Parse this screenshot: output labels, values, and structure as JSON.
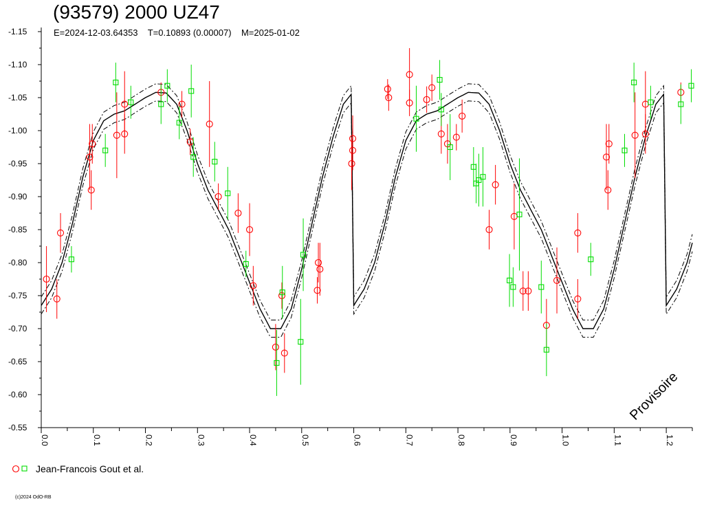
{
  "header": {
    "title": "(93579) 2000 UZ47",
    "subtitle": "E=2024-12-03.64353    T=0.10893 (0.00007)    M=2025-01-02"
  },
  "legend": {
    "label": "Jean-Francois Gout et al."
  },
  "copyright": "(c)2024 OdO-RB",
  "watermark": "Provisoire",
  "colors": {
    "series_red": "#ff0000",
    "series_green": "#00dd00",
    "curve": "#000000"
  },
  "chart_data": {
    "type": "scatter",
    "xlim": [
      0.0,
      1.25
    ],
    "ylim": [
      -1.15,
      -0.55
    ],
    "y_ticks": [
      "-1.15",
      "-1.10",
      "-1.05",
      "-1.00",
      "-0.95",
      "-0.90",
      "-0.85",
      "-0.80",
      "-0.75",
      "-0.70",
      "-0.65",
      "-0.60",
      "-0.55"
    ],
    "x_ticks": [
      "0.0",
      "0.1",
      "0.2",
      "0.3",
      "0.4",
      "0.5",
      "0.6",
      "0.7",
      "0.8",
      "0.9",
      "1.0",
      "1.1",
      "1.2"
    ],
    "grid": false,
    "legend_placement": "bottom-left",
    "series": [
      {
        "marker": "circle",
        "color": "#ff0000",
        "points": [
          [
            0.01,
            -0.775,
            0.05
          ],
          [
            0.03,
            -0.745,
            0.03
          ],
          [
            0.037,
            -0.845,
            0.03
          ],
          [
            0.093,
            -0.96,
            0.05
          ],
          [
            0.096,
            -0.91,
            0.03
          ],
          [
            0.098,
            -0.98,
            0.03
          ],
          [
            0.145,
            -0.993,
            0.065
          ],
          [
            0.16,
            -0.995,
            0.03
          ],
          [
            0.16,
            -1.04,
            0.05
          ],
          [
            0.23,
            -1.058,
            0.015
          ],
          [
            0.27,
            -1.04,
            0.02
          ],
          [
            0.286,
            -0.983,
            0.02
          ],
          [
            0.323,
            -1.01,
            0.065
          ],
          [
            0.34,
            -0.9,
            0.02
          ],
          [
            0.378,
            -0.875,
            0.03
          ],
          [
            0.4,
            -0.85,
            0.04
          ],
          [
            0.407,
            -0.765,
            0.03
          ],
          [
            0.45,
            -0.672,
            0.035
          ],
          [
            0.462,
            -0.75,
            0.02
          ],
          [
            0.467,
            -0.663,
            0.03
          ],
          [
            0.53,
            -0.758,
            0.02
          ],
          [
            0.532,
            -0.8,
            0.03
          ],
          [
            0.535,
            -0.79,
            0.04
          ],
          [
            0.596,
            -0.95,
            0.04
          ],
          [
            0.598,
            -0.988,
            0.035
          ],
          [
            0.598,
            -0.97,
            0.03
          ],
          [
            0.665,
            -1.063,
            0.015
          ],
          [
            0.667,
            -1.05,
            0.02
          ],
          [
            0.707,
            -1.085,
            0.04
          ],
          [
            0.707,
            -1.042,
            0.02
          ],
          [
            0.74,
            -1.047,
            0.02
          ],
          [
            0.75,
            -1.065,
            0.02
          ],
          [
            0.768,
            -0.995,
            0.03
          ],
          [
            0.78,
            -0.98,
            0.03
          ],
          [
            0.797,
            -0.99,
            0.02
          ],
          [
            0.808,
            -1.022,
            0.025
          ],
          [
            0.86,
            -0.85,
            0.03
          ],
          [
            0.872,
            -0.918,
            0.03
          ],
          [
            0.908,
            -0.87,
            0.05
          ],
          [
            0.925,
            -0.757,
            0.03
          ],
          [
            0.935,
            -0.757,
            0.03
          ],
          [
            0.97,
            -0.705,
            0.04
          ],
          [
            0.99,
            -0.773,
            0.05
          ],
          [
            1.03,
            -0.745,
            0.03
          ],
          [
            1.03,
            -0.845,
            0.03
          ],
          [
            1.085,
            -0.96,
            0.05
          ],
          [
            1.088,
            -0.91,
            0.03
          ],
          [
            1.09,
            -0.98,
            0.03
          ],
          [
            1.14,
            -0.993,
            0.065
          ],
          [
            1.16,
            -1.04,
            0.05
          ],
          [
            1.16,
            -0.995,
            0.03
          ],
          [
            1.228,
            -1.058,
            0.015
          ]
        ]
      },
      {
        "marker": "square",
        "color": "#00dd00",
        "points": [
          [
            0.058,
            -0.805,
            0.02
          ],
          [
            0.123,
            -0.97,
            0.025
          ],
          [
            0.143,
            -1.073,
            0.03
          ],
          [
            0.172,
            -1.043,
            0.025
          ],
          [
            0.23,
            -1.04,
            0.03
          ],
          [
            0.242,
            -1.068,
            0.025
          ],
          [
            0.265,
            -1.012,
            0.025
          ],
          [
            0.288,
            -1.06,
            0.04
          ],
          [
            0.292,
            -0.96,
            0.03
          ],
          [
            0.333,
            -0.953,
            0.03
          ],
          [
            0.358,
            -0.905,
            0.04
          ],
          [
            0.393,
            -0.798,
            0.02
          ],
          [
            0.452,
            -0.648,
            0.05
          ],
          [
            0.463,
            -0.755,
            0.04
          ],
          [
            0.498,
            -0.68,
            0.065
          ],
          [
            0.503,
            -0.812,
            0.055
          ],
          [
            0.72,
            -1.018,
            0.05
          ],
          [
            0.765,
            -1.077,
            0.03
          ],
          [
            0.768,
            -1.032,
            0.025
          ],
          [
            0.785,
            -0.975,
            0.05
          ],
          [
            0.83,
            -0.945,
            0.03
          ],
          [
            0.835,
            -0.92,
            0.03
          ],
          [
            0.84,
            -0.925,
            0.04
          ],
          [
            0.848,
            -0.93,
            0.045
          ],
          [
            0.899,
            -0.773,
            0.04
          ],
          [
            0.906,
            -0.763,
            0.03
          ],
          [
            0.918,
            -0.873,
            0.085
          ],
          [
            0.96,
            -0.763,
            0.04
          ],
          [
            0.97,
            -0.668,
            0.04
          ],
          [
            1.055,
            -0.805,
            0.025
          ],
          [
            1.12,
            -0.97,
            0.025
          ],
          [
            1.138,
            -1.073,
            0.03
          ],
          [
            1.17,
            -1.043,
            0.025
          ],
          [
            1.228,
            -1.04,
            0.03
          ],
          [
            1.248,
            -1.068,
            0.025
          ]
        ]
      }
    ],
    "fit_curve": {
      "period_fraction": 0.6,
      "phase": [
        0.0,
        0.02,
        0.04,
        0.06,
        0.08,
        0.1,
        0.12,
        0.14,
        0.16,
        0.18,
        0.2,
        0.22,
        0.24,
        0.26,
        0.28,
        0.3,
        0.32,
        0.34,
        0.36,
        0.38,
        0.4,
        0.42,
        0.44,
        0.46,
        0.48,
        0.5,
        0.52,
        0.54,
        0.56,
        0.58,
        0.6
      ],
      "magnitude": [
        -0.735,
        -0.76,
        -0.8,
        -0.86,
        -0.93,
        -0.985,
        -1.015,
        -1.025,
        -1.03,
        -1.04,
        -1.05,
        -1.058,
        -1.057,
        -1.04,
        -1.0,
        -0.95,
        -0.91,
        -0.88,
        -0.85,
        -0.81,
        -0.77,
        -0.73,
        -0.7,
        -0.7,
        -0.73,
        -0.79,
        -0.86,
        -0.93,
        -0.99,
        -1.04,
        -1.06
      ],
      "envelope": 0.013
    }
  }
}
